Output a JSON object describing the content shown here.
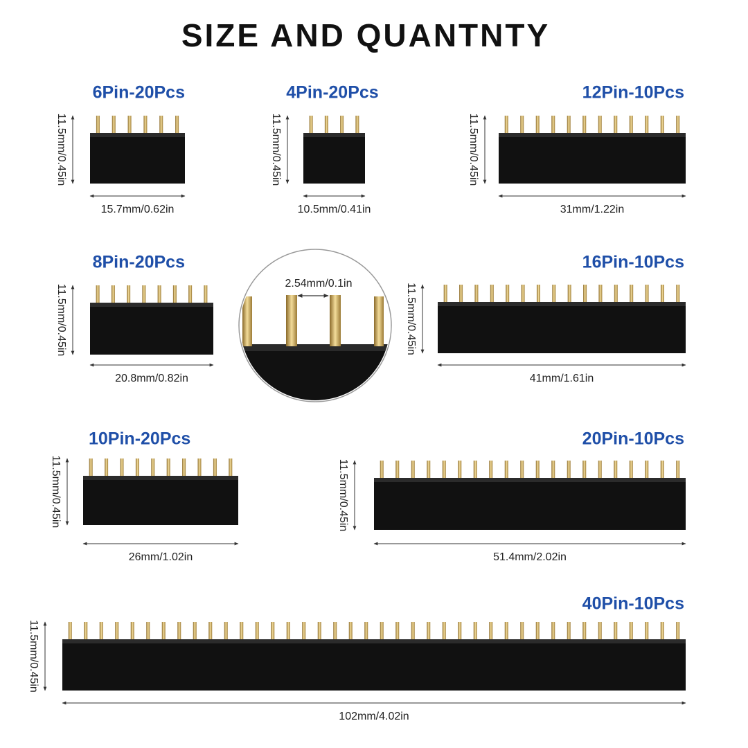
{
  "title": "SIZE AND QUANTNTY",
  "items": [
    {
      "label": "6Pin-20Pcs",
      "height": "11.5mm/0.45in",
      "width": "15.7mm/0.62in"
    },
    {
      "label": "4Pin-20Pcs",
      "height": "11.5mm/0.45in",
      "width": "10.5mm/0.41in"
    },
    {
      "label": "12Pin-10Pcs",
      "height": "11.5mm/0.45in",
      "width": "31mm/1.22in"
    },
    {
      "label": "8Pin-20Pcs",
      "height": "11.5mm/0.45in",
      "width": "20.8mm/0.82in"
    },
    {
      "label": "16Pin-10Pcs",
      "height": "11.5mm/0.45in",
      "width": "41mm/1.61in"
    },
    {
      "label": "10Pin-20Pcs",
      "height": "11.5mm/0.45in",
      "width": "26mm/1.02in"
    },
    {
      "label": "20Pin-10Pcs",
      "height": "11.5mm/0.45in",
      "width": "51.4mm/2.02in"
    },
    {
      "label": "40Pin-10Pcs",
      "height": "11.5mm/0.45in",
      "width": "102mm/4.02in"
    }
  ],
  "zoom": {
    "pitch": "2.54mm/0.1in"
  }
}
